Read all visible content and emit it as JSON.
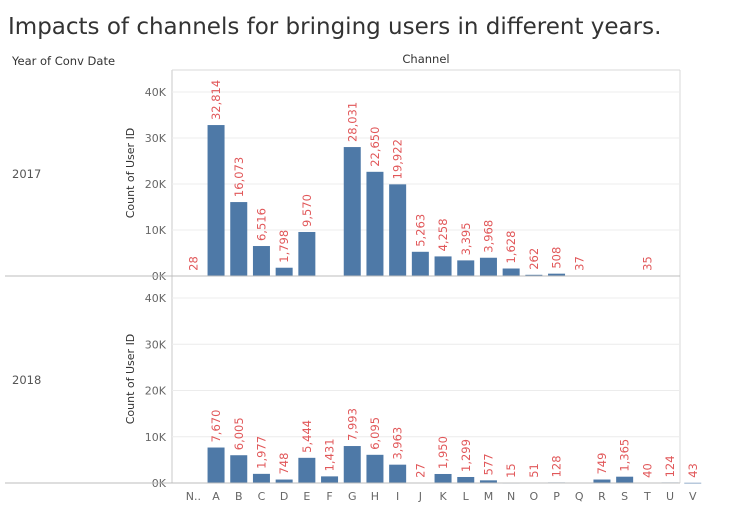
{
  "chart_data": {
    "type": "bar",
    "title": "Impacts of channels for bringing users in different years.",
    "row_header": "Year of Conv Date",
    "column_header": "Channel",
    "ylabel": "Count of User ID",
    "ylim": [
      0,
      45000
    ],
    "y_ticks": [
      {
        "value": 0,
        "label": "0K"
      },
      {
        "value": 10000,
        "label": "10K"
      },
      {
        "value": 20000,
        "label": "20K"
      },
      {
        "value": 30000,
        "label": "30K"
      },
      {
        "value": 40000,
        "label": "40K"
      }
    ],
    "grid": true,
    "bar_color": "#4e79a7",
    "label_color": "#e15759",
    "categories": [
      "N..",
      "A",
      "B",
      "C",
      "D",
      "E",
      "F",
      "G",
      "H",
      "I",
      "J",
      "K",
      "L",
      "M",
      "N",
      "O",
      "P",
      "Q",
      "R",
      "S",
      "T",
      "U",
      "V"
    ],
    "panels": [
      {
        "year": "2017",
        "values": [
          28,
          32814,
          16073,
          6516,
          1798,
          9570,
          null,
          28031,
          22650,
          19922,
          5263,
          4258,
          3395,
          3968,
          1628,
          262,
          508,
          37,
          null,
          null,
          35,
          null,
          null
        ],
        "labels": [
          "28",
          "32,814",
          "16,073",
          "6,516",
          "1,798",
          "9,570",
          null,
          "28,031",
          "22,650",
          "19,922",
          "5,263",
          "4,258",
          "3,395",
          "3,968",
          "1,628",
          "262",
          "508",
          "37",
          null,
          null,
          "35",
          null,
          null
        ]
      },
      {
        "year": "2018",
        "values": [
          null,
          7670,
          6005,
          1977,
          748,
          5444,
          1431,
          7993,
          6095,
          3963,
          27,
          1950,
          1299,
          577,
          15,
          51,
          128,
          null,
          749,
          1365,
          40,
          124,
          43
        ],
        "labels": [
          null,
          "7,670",
          "6,005",
          "1,977",
          "748",
          "5,444",
          "1,431",
          "7,993",
          "6,095",
          "3,963",
          "27",
          "1,950",
          "1,299",
          "577",
          "15",
          "51",
          "128",
          null,
          "749",
          "1,365",
          "40",
          "124",
          "43"
        ]
      }
    ]
  }
}
